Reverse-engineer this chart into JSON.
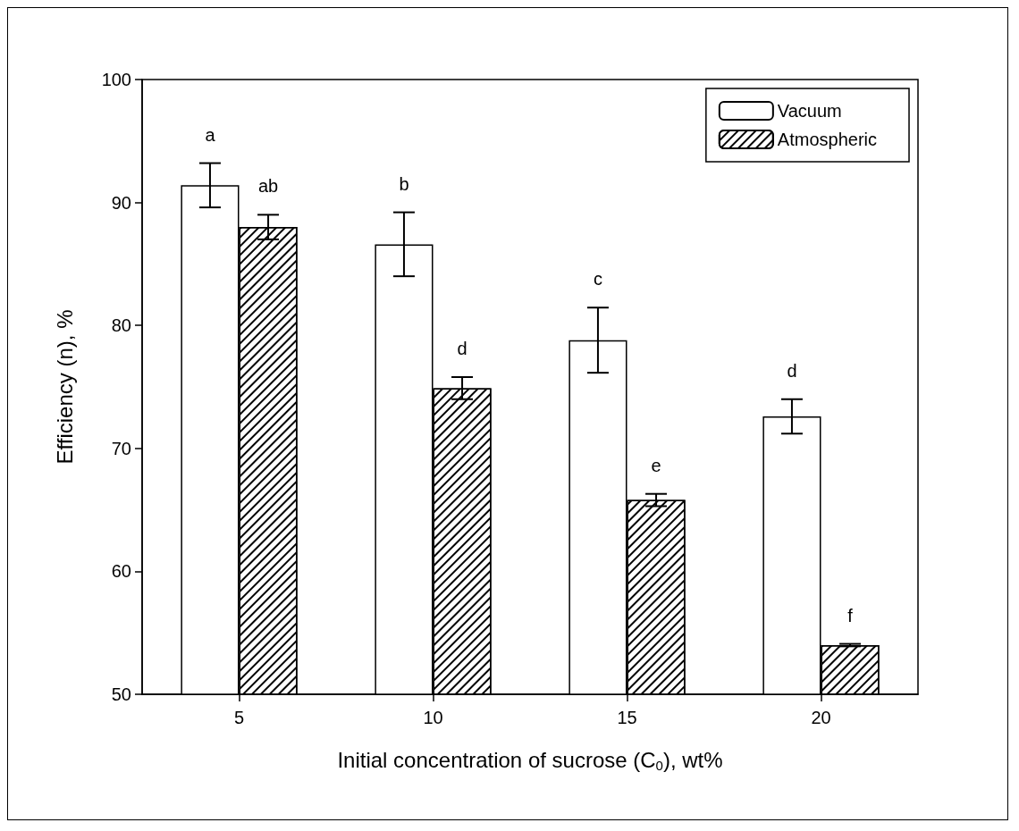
{
  "chart_data": {
    "type": "bar",
    "xlabel": "Initial concentration of sucrose (C$_{0}$), wt%",
    "ylabel": "Efficiency (n), %",
    "categories": [
      "5",
      "10",
      "15",
      "20"
    ],
    "series": [
      {
        "name": "Vacuum",
        "color": "#ffffff",
        "values": [
          91.4,
          86.6,
          78.8,
          72.6
        ],
        "errors": [
          1.8,
          2.6,
          2.65,
          1.4
        ],
        "value_labels": [
          "a",
          "b",
          "c",
          "d"
        ]
      },
      {
        "name": "Atmospheric",
        "color": "#000000",
        "values": [
          88.0,
          74.9,
          65.8,
          54.0
        ],
        "errors": [
          1.0,
          0.9,
          0.5,
          0.1
        ],
        "value_labels": [
          "ab",
          "d",
          "e",
          "f"
        ]
      }
    ],
    "ylim": [
      50,
      100
    ],
    "yticks": [
      50,
      60,
      70,
      80,
      90,
      100
    ],
    "grid": false,
    "legend": "top right"
  }
}
